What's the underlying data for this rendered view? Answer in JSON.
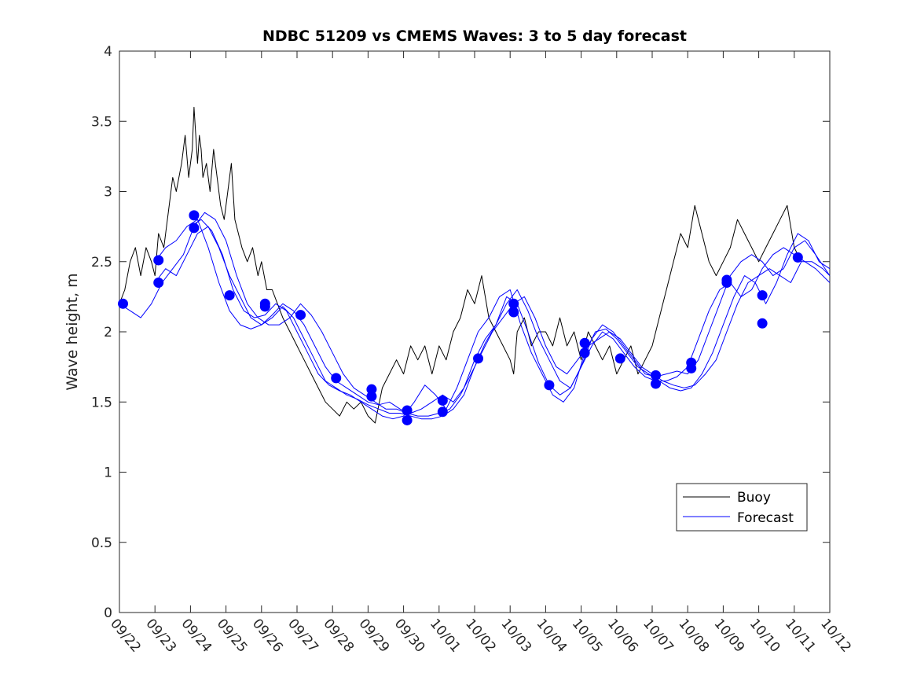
{
  "chart_data": {
    "type": "line",
    "title": "NDBC 51209 vs CMEMS Waves: 3 to 5 day forecast",
    "xlabel": "",
    "ylabel": "Wave height, m",
    "ylim": [
      0,
      4
    ],
    "xlim": [
      0,
      20
    ],
    "yticks": [
      "0",
      "0.5",
      "1",
      "1.5",
      "2",
      "2.5",
      "3",
      "3.5",
      "4"
    ],
    "xtick_labels": [
      "09/22",
      "09/23",
      "09/24",
      "09/25",
      "09/26",
      "09/27",
      "09/28",
      "09/29",
      "09/30",
      "10/01",
      "10/02",
      "10/03",
      "10/04",
      "10/05",
      "10/06",
      "10/07",
      "10/08",
      "10/09",
      "10/10",
      "10/11",
      "10/12"
    ],
    "legend": {
      "position": "bottom-right",
      "entries": [
        "Buoy",
        "Forecast"
      ]
    },
    "colors": {
      "buoy": "#000000",
      "forecast": "#0000ff",
      "axis": "#262626"
    },
    "series": [
      {
        "name": "Buoy",
        "x": [
          0,
          0.15,
          0.3,
          0.45,
          0.6,
          0.75,
          0.9,
          1.0,
          1.1,
          1.25,
          1.4,
          1.5,
          1.6,
          1.75,
          1.85,
          1.95,
          2.05,
          2.1,
          2.2,
          2.25,
          2.3,
          2.35,
          2.45,
          2.55,
          2.65,
          2.75,
          2.85,
          2.95,
          3.05,
          3.15,
          3.25,
          3.35,
          3.45,
          3.6,
          3.75,
          3.9,
          4.0,
          4.15,
          4.3,
          4.45,
          4.6,
          4.8,
          5.0,
          5.2,
          5.4,
          5.6,
          5.8,
          6.0,
          6.2,
          6.4,
          6.6,
          6.8,
          7.0,
          7.2,
          7.4,
          7.6,
          7.8,
          8.0,
          8.2,
          8.4,
          8.6,
          8.8,
          9.0,
          9.2,
          9.4,
          9.6,
          9.8,
          10.0,
          10.2,
          10.4,
          10.6,
          10.8,
          11.0,
          11.1,
          11.2,
          11.4,
          11.6,
          11.8,
          12.0,
          12.2,
          12.4,
          12.6,
          12.8,
          13.0,
          13.2,
          13.4,
          13.6,
          13.8,
          14.0,
          14.2,
          14.4,
          14.6,
          14.8,
          15.0,
          15.2,
          15.4,
          15.6,
          15.8,
          16.0,
          16.2,
          16.4,
          16.6,
          16.8,
          17.0,
          17.2,
          17.4,
          17.6,
          17.8,
          18.0,
          18.2,
          18.4,
          18.6,
          18.8,
          19.0,
          19.2
        ],
        "values": [
          2.2,
          2.3,
          2.5,
          2.6,
          2.4,
          2.6,
          2.5,
          2.4,
          2.7,
          2.6,
          2.9,
          3.1,
          3.0,
          3.2,
          3.4,
          3.1,
          3.3,
          3.6,
          3.2,
          3.4,
          3.3,
          3.1,
          3.2,
          3.0,
          3.3,
          3.1,
          2.9,
          2.8,
          3.0,
          3.2,
          2.8,
          2.7,
          2.6,
          2.5,
          2.6,
          2.4,
          2.5,
          2.3,
          2.3,
          2.2,
          2.1,
          2.0,
          1.9,
          1.8,
          1.7,
          1.6,
          1.5,
          1.45,
          1.4,
          1.5,
          1.45,
          1.5,
          1.4,
          1.35,
          1.6,
          1.7,
          1.8,
          1.7,
          1.9,
          1.8,
          1.9,
          1.7,
          1.9,
          1.8,
          2.0,
          2.1,
          2.3,
          2.2,
          2.4,
          2.1,
          2.0,
          1.9,
          1.8,
          1.7,
          2.0,
          2.1,
          1.9,
          2.0,
          2.0,
          1.9,
          2.1,
          1.9,
          2.0,
          1.8,
          2.0,
          1.9,
          1.8,
          1.9,
          1.7,
          1.8,
          1.9,
          1.7,
          1.8,
          1.9,
          2.1,
          2.3,
          2.5,
          2.7,
          2.6,
          2.9,
          2.7,
          2.5,
          2.4,
          2.5,
          2.6,
          2.8,
          2.7,
          2.6,
          2.5,
          2.6,
          2.7,
          2.8,
          2.9,
          2.6,
          2.5
        ]
      },
      {
        "name": "Forecast",
        "x": [
          0,
          0.3,
          0.6,
          0.9,
          1.2,
          1.5,
          1.8,
          2.1,
          2.4,
          2.7,
          3.0,
          3.3,
          3.6,
          3.9,
          4.2,
          4.5,
          4.8,
          5.1,
          5.4,
          5.7,
          6.0,
          6.3,
          6.6,
          6.9,
          7.2,
          7.5,
          7.8,
          8.1,
          8.4,
          8.7,
          9.0,
          9.3,
          9.6,
          9.9,
          10.2,
          10.5,
          10.8,
          11.1,
          11.4,
          11.7,
          12.0,
          12.3,
          12.6,
          12.9,
          13.2,
          13.5,
          13.8,
          14.1,
          14.4,
          14.7,
          15.0,
          15.3,
          15.6,
          15.9,
          16.2,
          16.5,
          16.8,
          17.1,
          17.4,
          17.7,
          18.0,
          18.3,
          18.6,
          18.9,
          19.2,
          19.5,
          19.8,
          20.0
        ],
        "values": [
          2.2,
          2.15,
          2.1,
          2.2,
          2.35,
          2.45,
          2.55,
          2.75,
          2.85,
          2.8,
          2.65,
          2.4,
          2.2,
          2.1,
          2.05,
          2.05,
          2.1,
          2.2,
          2.12,
          2.0,
          1.85,
          1.7,
          1.6,
          1.55,
          1.5,
          1.45,
          1.45,
          1.42,
          1.4,
          1.4,
          1.42,
          1.45,
          1.55,
          1.7,
          1.85,
          2.0,
          2.1,
          2.2,
          2.25,
          2.1,
          1.9,
          1.75,
          1.7,
          1.8,
          1.9,
          1.95,
          2.0,
          1.95,
          1.85,
          1.75,
          1.7,
          1.65,
          1.62,
          1.6,
          1.62,
          1.7,
          1.8,
          2.0,
          2.2,
          2.35,
          2.4,
          2.45,
          2.4,
          2.35,
          2.5,
          2.5,
          2.45,
          2.4
        ]
      },
      {
        "name": "Forecast",
        "x": [
          1.0,
          1.3,
          1.6,
          1.9,
          2.2,
          2.5,
          2.8,
          3.1,
          3.4,
          3.7,
          4.0,
          4.3,
          4.6,
          4.9,
          5.2,
          5.5,
          5.8,
          6.1,
          6.4,
          6.7,
          7.0,
          7.3,
          7.6,
          7.9,
          8.2,
          8.5,
          8.8,
          9.1,
          9.4,
          9.7,
          10.0,
          10.3,
          10.6,
          10.9,
          11.2,
          11.5,
          11.8,
          12.1,
          12.4,
          12.7,
          13.0,
          13.3,
          13.6,
          13.9,
          14.2,
          14.5,
          14.8,
          15.1,
          15.4,
          15.7,
          16.0,
          16.3,
          16.6,
          16.9,
          17.2,
          17.5,
          17.8,
          18.1,
          18.4,
          18.7,
          19.0,
          19.3,
          19.6,
          20.0
        ],
        "values": [
          2.5,
          2.6,
          2.65,
          2.75,
          2.8,
          2.6,
          2.35,
          2.15,
          2.05,
          2.02,
          2.05,
          2.12,
          2.2,
          2.15,
          2.05,
          1.9,
          1.75,
          1.65,
          1.6,
          1.55,
          1.5,
          1.48,
          1.5,
          1.45,
          1.42,
          1.45,
          1.5,
          1.55,
          1.5,
          1.6,
          1.8,
          1.95,
          2.05,
          2.2,
          2.3,
          2.15,
          1.95,
          1.8,
          1.65,
          1.6,
          1.75,
          1.95,
          2.05,
          2.0,
          1.9,
          1.8,
          1.7,
          1.68,
          1.7,
          1.72,
          1.7,
          1.8,
          2.0,
          2.2,
          2.4,
          2.5,
          2.55,
          2.5,
          2.4,
          2.45,
          2.6,
          2.65,
          2.55,
          2.4
        ]
      },
      {
        "name": "Forecast",
        "x": [
          2.0,
          2.3,
          2.6,
          2.9,
          3.2,
          3.5,
          3.8,
          4.1,
          4.4,
          4.7,
          5.0,
          5.3,
          5.6,
          5.9,
          6.2,
          6.5,
          6.8,
          7.1,
          7.4,
          7.7,
          8.0,
          8.3,
          8.6,
          8.9,
          9.2,
          9.5,
          9.8,
          10.1,
          10.4,
          10.7,
          11.0,
          11.3,
          11.6,
          11.9,
          12.2,
          12.5,
          12.8,
          13.1,
          13.4,
          13.7,
          14.0,
          14.3,
          14.6,
          14.9,
          15.2,
          15.5,
          15.8,
          16.1,
          16.4,
          16.7,
          17.0,
          17.3,
          17.6,
          17.9,
          18.2,
          18.5,
          18.8,
          19.1,
          19.4,
          19.7,
          20.0
        ],
        "values": [
          2.75,
          2.8,
          2.72,
          2.55,
          2.3,
          2.15,
          2.1,
          2.12,
          2.2,
          2.15,
          2.0,
          1.85,
          1.7,
          1.62,
          1.58,
          1.55,
          1.5,
          1.45,
          1.4,
          1.38,
          1.4,
          1.5,
          1.62,
          1.55,
          1.45,
          1.6,
          1.8,
          2.0,
          2.1,
          2.25,
          2.3,
          2.05,
          1.85,
          1.7,
          1.55,
          1.5,
          1.6,
          1.85,
          2.0,
          2.02,
          1.95,
          1.85,
          1.75,
          1.7,
          1.65,
          1.6,
          1.58,
          1.6,
          1.7,
          1.85,
          2.05,
          2.25,
          2.4,
          2.35,
          2.2,
          2.35,
          2.55,
          2.7,
          2.65,
          2.5,
          2.45
        ]
      },
      {
        "name": "Forecast",
        "x": [
          1.0,
          1.3,
          1.6,
          1.9,
          2.2,
          2.5,
          2.8,
          3.1,
          3.4,
          3.7,
          4.0,
          4.3,
          4.6,
          4.9,
          5.2,
          5.5,
          5.8,
          6.1,
          6.4,
          6.7,
          7.0,
          7.3,
          7.6,
          7.9,
          8.2,
          8.5,
          8.8,
          9.1,
          9.4,
          9.7,
          10.0,
          10.3,
          10.6,
          10.9,
          11.2,
          11.5,
          11.8,
          12.1,
          12.4,
          12.7,
          13.0,
          13.3,
          13.6,
          13.9,
          14.2,
          14.5,
          14.8,
          15.1,
          15.4,
          15.7,
          16.0,
          16.3,
          16.6,
          16.9,
          17.2,
          17.5,
          17.8,
          18.1,
          18.4,
          18.7,
          19.0,
          19.3,
          19.6,
          20.0
        ],
        "values": [
          2.35,
          2.45,
          2.4,
          2.55,
          2.7,
          2.75,
          2.6,
          2.4,
          2.25,
          2.1,
          2.05,
          2.1,
          2.18,
          2.1,
          1.95,
          1.8,
          1.65,
          1.6,
          1.55,
          1.52,
          1.48,
          1.45,
          1.42,
          1.42,
          1.4,
          1.38,
          1.38,
          1.4,
          1.45,
          1.55,
          1.75,
          1.92,
          2.05,
          2.25,
          2.2,
          2.0,
          1.78,
          1.62,
          1.55,
          1.6,
          1.75,
          1.9,
          2.0,
          1.95,
          1.85,
          1.75,
          1.68,
          1.65,
          1.65,
          1.68,
          1.75,
          1.95,
          2.15,
          2.3,
          2.35,
          2.25,
          2.3,
          2.45,
          2.55,
          2.6,
          2.55,
          2.5,
          2.45,
          2.35
        ]
      }
    ],
    "markers": {
      "name": "Forecast start points",
      "x": [
        0.1,
        1.1,
        1.1,
        2.1,
        2.1,
        3.1,
        4.1,
        4.1,
        5.1,
        6.1,
        7.1,
        7.1,
        8.1,
        8.1,
        9.1,
        9.1,
        10.1,
        11.1,
        11.1,
        12.1,
        13.1,
        13.1,
        14.1,
        15.1,
        15.1,
        16.1,
        16.1,
        17.1,
        17.1,
        18.1,
        18.1,
        19.1
      ],
      "values": [
        2.2,
        2.51,
        2.35,
        2.83,
        2.74,
        2.26,
        2.2,
        2.18,
        2.12,
        1.67,
        1.59,
        1.54,
        1.44,
        1.37,
        1.51,
        1.43,
        1.81,
        2.2,
        2.14,
        1.62,
        1.92,
        1.85,
        1.81,
        1.69,
        1.63,
        1.78,
        1.74,
        2.37,
        2.35,
        2.26,
        2.06,
        2.53
      ]
    }
  }
}
